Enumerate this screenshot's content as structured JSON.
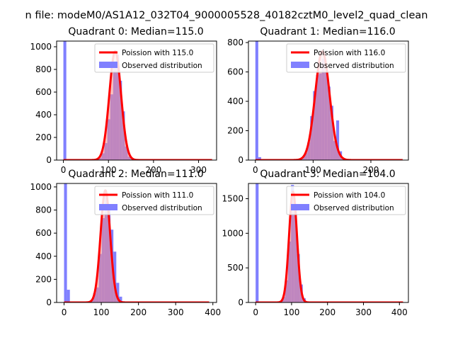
{
  "figure": {
    "suptitle": "n file: modeM0/AS1A12_032T04_9000005528_40182cztM0_level2_quad_clean"
  },
  "colors": {
    "poisson_line": "#ff0000",
    "poisson_fill": "#f28b8b",
    "histogram": "#8080ff",
    "spine": "#000000",
    "background": "#ffffff"
  },
  "chart_data": [
    {
      "type": "bar",
      "title": "Quadrant 0: Median=115.0",
      "xlim": [
        -15,
        340
      ],
      "ylim": [
        0,
        1050
      ],
      "xticks": [
        0,
        100,
        200,
        300
      ],
      "yticks": [
        0,
        200,
        400,
        600,
        800,
        1000
      ],
      "legend": {
        "placement": "top-right",
        "line_label": "Poission with 115.0",
        "patch_label": "Observed distribution"
      },
      "poisson_mean": 115.0,
      "poisson_sigma": 13,
      "poisson_peak": 960,
      "poisson_x_range": [
        0,
        330
      ],
      "histogram": {
        "bin_width": 6.5,
        "bin_starts": [
          0,
          78,
          84.5,
          91,
          97.5,
          104,
          110.5,
          117,
          123.5,
          130,
          136.5,
          143,
          149.5
        ],
        "counts": [
          1050,
          20,
          60,
          150,
          360,
          580,
          840,
          930,
          700,
          430,
          120,
          30,
          10
        ]
      }
    },
    {
      "type": "bar",
      "title": "Quadrant 1: Median=116.0",
      "xlim": [
        -12,
        265
      ],
      "ylim": [
        0,
        810
      ],
      "xticks": [
        0,
        100,
        200
      ],
      "yticks": [
        0,
        200,
        400,
        600,
        800
      ],
      "legend": {
        "placement": "top-right",
        "line_label": "Poission with 116.0",
        "patch_label": "Observed distribution"
      },
      "poisson_mean": 116.0,
      "poisson_sigma": 12.5,
      "poisson_peak": 740,
      "poisson_x_range": [
        0,
        255
      ],
      "histogram": {
        "bin_width": 5,
        "bin_starts": [
          0,
          5,
          75,
          80,
          85,
          90,
          95,
          100,
          105,
          110,
          115,
          120,
          125,
          130,
          135,
          140,
          145,
          150
        ],
        "counts": [
          810,
          20,
          5,
          20,
          50,
          120,
          300,
          470,
          580,
          590,
          690,
          600,
          500,
          370,
          130,
          270,
          60,
          10
        ]
      }
    },
    {
      "type": "bar",
      "title": "Quadrant 2: Median=111.0",
      "xlim": [
        -20,
        410
      ],
      "ylim": [
        0,
        1030
      ],
      "xticks": [
        0,
        100,
        200,
        300,
        400
      ],
      "yticks": [
        0,
        200,
        400,
        600,
        800,
        1000
      ],
      "legend": {
        "placement": "top-right",
        "line_label": "Poission with 111.0",
        "patch_label": "Observed distribution"
      },
      "poisson_mean": 111.0,
      "poisson_sigma": 13,
      "poisson_peak": 970,
      "poisson_x_range": [
        0,
        390
      ],
      "histogram": {
        "bin_width": 7.8,
        "bin_starts": [
          0,
          7.8,
          62.4,
          70.2,
          78,
          85.8,
          93.6,
          101.4,
          109.2,
          117,
          124.8,
          132.6,
          140.4,
          148.2,
          156
        ],
        "counts": [
          1030,
          110,
          5,
          15,
          80,
          130,
          420,
          730,
          920,
          800,
          630,
          440,
          170,
          50,
          10
        ]
      }
    },
    {
      "type": "bar",
      "title": "Quadrant 3: Median=104.0",
      "xlim": [
        -20,
        425
      ],
      "ylim": [
        0,
        1720
      ],
      "xticks": [
        0,
        100,
        200,
        300,
        400
      ],
      "yticks": [
        0,
        500,
        1000,
        1500
      ],
      "legend": {
        "placement": "top-right",
        "line_label": "Poission with 104.0",
        "patch_label": "Observed distribution"
      },
      "poisson_mean": 104.0,
      "poisson_sigma": 11,
      "poisson_peak": 1600,
      "poisson_x_range": [
        0,
        410
      ],
      "histogram": {
        "bin_width": 8.2,
        "bin_starts": [
          0,
          65.6,
          73.8,
          82,
          90.2,
          98.4,
          106.6,
          114.8,
          123,
          131.2,
          139.4
        ],
        "counts": [
          1720,
          20,
          80,
          320,
          880,
          1700,
          1350,
          700,
          260,
          60,
          10
        ]
      }
    }
  ]
}
